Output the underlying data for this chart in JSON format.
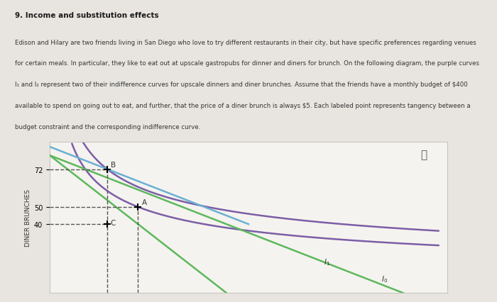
{
  "title": "9. Income and substitution effects",
  "body_text": "Edison and Hilary are two friends living in San Diego who love to try different restaurants in their city, but have specific preferences regarding venues\nfor certain meals. In particular, they like to eat out at upscale gastropubs for dinner and diners for brunch. On the following diagram, the purple curves\nI₁ and I₂ represent two of their indifference curves for upscale dinners and diner brunches. Assume that the friends have a monthly budget of $400\navailable to spend on going out to eat, and further, that the price of a diner brunch is always $5. Each labeled point represents tangency between a\nbudget constraint and the corresponding indifference curve.",
  "ylabel": "DINER BRUNCHES",
  "y_ticks": [
    40,
    50,
    72
  ],
  "xlim": [
    0,
    90
  ],
  "ylim": [
    0,
    88
  ],
  "point_A": [
    20,
    50
  ],
  "point_B": [
    13,
    72
  ],
  "point_C": [
    13,
    40
  ],
  "green_color": "#5cb85c",
  "blue_color": "#6ab0d4",
  "purple_color": "#7b5ea7",
  "dashed_color": "#555555",
  "label_color": "#333333",
  "page_bg": "#e8e5e0",
  "chart_bg": "#f5f3ef",
  "border_color": "#c8c5c0"
}
